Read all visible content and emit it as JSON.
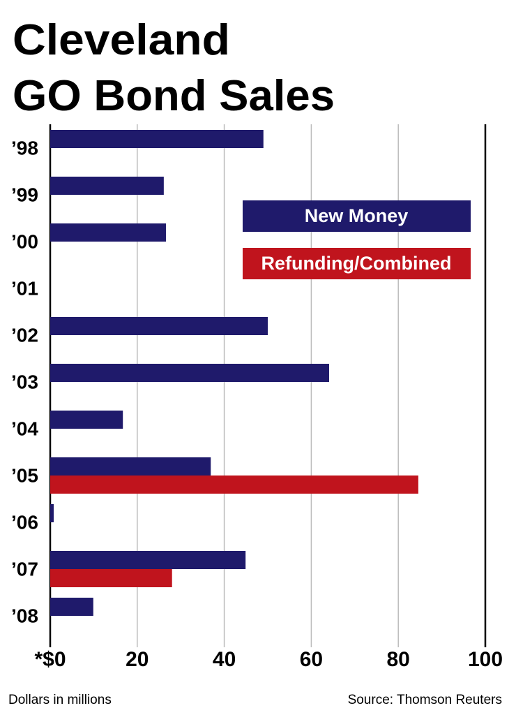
{
  "chart_data": {
    "type": "bar",
    "orientation": "horizontal",
    "title": [
      "Cleveland",
      "GO Bond Sales"
    ],
    "categories": [
      "’98",
      "’99",
      "’00",
      "’01",
      "’02",
      "’03",
      "’04",
      "’05",
      "’06",
      "’07",
      "’08"
    ],
    "series": [
      {
        "name": "New Money",
        "color": "#1f1a6b",
        "values": [
          49,
          26.1,
          26.6,
          null,
          50,
          64.1,
          16.7,
          36.9,
          0.8,
          44.9,
          9.9
        ]
      },
      {
        "name": "Refunding/Combined",
        "color": "#c0141d",
        "values": [
          null,
          null,
          null,
          null,
          null,
          null,
          null,
          84.6,
          null,
          28,
          null
        ]
      }
    ],
    "xlim": [
      0,
      100
    ],
    "xticks": [
      {
        "value": 0,
        "label": "*$0"
      },
      20,
      40,
      60,
      80,
      100
    ],
    "grid": true,
    "legend": "upper right",
    "x_label": "Dollars in millions",
    "source": "Source: Thomson Reuters"
  }
}
